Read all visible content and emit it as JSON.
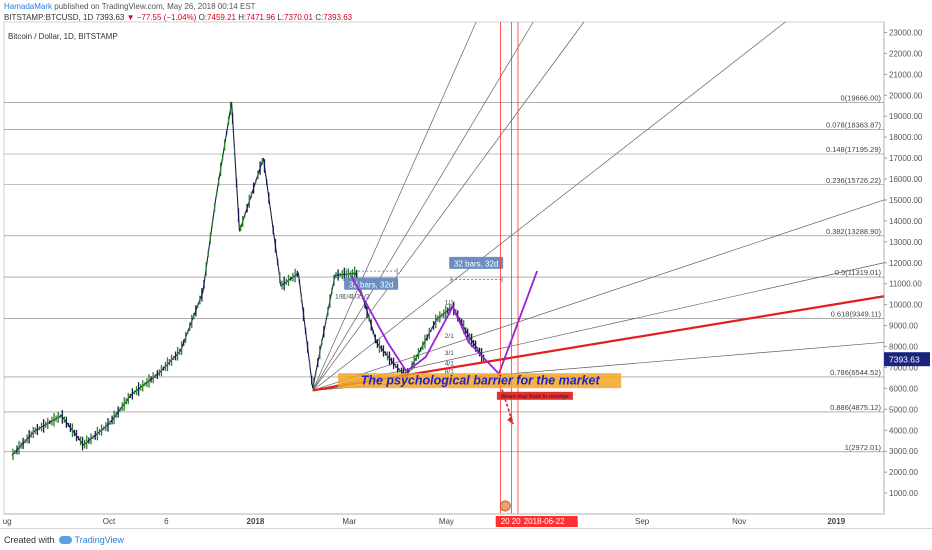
{
  "header": {
    "username": "HamadaMark",
    "published": "published on TradingView.com, May 26, 2018 00:14 EST",
    "symbol": "BITSTAMP:BTCUSD, 1D",
    "last": "7393.63",
    "change": "−77.55 (−1.04%)",
    "o_label": "O:",
    "o": "7459.21",
    "h_label": "H:",
    "h": "7471.96",
    "l_label": "L:",
    "l": "7370.01",
    "c_label": "C:",
    "c": "7393.63"
  },
  "footer": {
    "created_with": "Created with",
    "brand": "TradingView"
  },
  "chart_data": {
    "type": "line",
    "title": "Bitcoin / Dollar, 1D, BITSTAMP",
    "ylim": [
      0,
      23500
    ],
    "y_ticks": [
      "1000.00",
      "2000.00",
      "3000.00",
      "4000.00",
      "5000.00",
      "6000.00",
      "7000.00",
      "8000.00",
      "9000.00",
      "10000.00",
      "11000.00",
      "12000.00",
      "13000.00",
      "14000.00",
      "15000.00",
      "16000.00",
      "17000.00",
      "18000.00",
      "19000.00",
      "20000.00",
      "21000.00",
      "22000.00",
      "23000.00"
    ],
    "x_ticks": [
      "ug",
      "Oct",
      "6",
      "2018",
      "Mar",
      "May",
      "Sep",
      "Nov",
      "2019"
    ],
    "x_ticks_bold": [
      "2018",
      "2019"
    ],
    "last_price_label": "7393.63",
    "last_price": 7393.63,
    "price": [
      [
        "2017-08-01",
        2800
      ],
      [
        "2017-08-15",
        3950
      ],
      [
        "2017-09-01",
        4700
      ],
      [
        "2017-09-15",
        3300
      ],
      [
        "2017-10-01",
        4300
      ],
      [
        "2017-10-15",
        5700
      ],
      [
        "2017-11-01",
        6700
      ],
      [
        "2017-11-15",
        7800
      ],
      [
        "2017-11-29",
        10600
      ],
      [
        "2017-12-07",
        15000
      ],
      [
        "2017-12-17",
        19666
      ],
      [
        "2017-12-22",
        13500
      ],
      [
        "2018-01-06",
        17000
      ],
      [
        "2018-01-17",
        10900
      ],
      [
        "2018-01-28",
        11500
      ],
      [
        "2018-02-06",
        6000
      ],
      [
        "2018-02-20",
        11400
      ],
      [
        "2018-03-05",
        11500
      ],
      [
        "2018-03-18",
        8200
      ],
      [
        "2018-04-01",
        6900
      ],
      [
        "2018-04-06",
        6600
      ],
      [
        "2018-04-25",
        9300
      ],
      [
        "2018-05-05",
        9900
      ],
      [
        "2018-05-15",
        8500
      ],
      [
        "2018-05-25",
        7393.63
      ]
    ],
    "fib_levels": [
      {
        "ratio": "0",
        "value": 19666.0,
        "label": "0(19666.00)"
      },
      {
        "ratio": "0.078",
        "value": 18363.87,
        "label": "0.078(18363.87)"
      },
      {
        "ratio": "0.148",
        "value": 17195.29,
        "label": "0.148(17195.29)"
      },
      {
        "ratio": "0.236",
        "value": 15726.22,
        "label": "0.236(15726.22)"
      },
      {
        "ratio": "0.382",
        "value": 13288.9,
        "label": "0.382(13288.90)"
      },
      {
        "ratio": "0.5",
        "value": 11319.01,
        "label": "0.5(11319.01)"
      },
      {
        "ratio": "0.618",
        "value": 9349.11,
        "label": "0.618(9349.11)"
      },
      {
        "ratio": "0.786",
        "value": 6544.52,
        "label": "0.786(6544.52)"
      },
      {
        "ratio": "0.886",
        "value": 4875.12,
        "label": "0.886(4875.12)"
      },
      {
        "ratio": "1",
        "value": 2972.01,
        "label": "1(2972.01)"
      }
    ],
    "gann_fan": {
      "origin": [
        "2018-02-06",
        5900
      ],
      "rays": [
        [
          "2018-06-15",
          28000
        ],
        [
          "2018-07-30",
          28000
        ],
        [
          "2018-09-08",
          28000
        ],
        [
          "2018-11-30",
          23500
        ],
        [
          "2019-01-31",
          15000
        ],
        [
          "2019-01-31",
          12000
        ],
        [
          "2019-01-31",
          8200
        ]
      ],
      "ratio_labels": [
        {
          "text": "1/8",
          "date": "2018-02-20",
          "value": 10300
        },
        {
          "text": "1/4",
          "date": "2018-02-25",
          "value": 10300
        },
        {
          "text": "1/3",
          "date": "2018-03-02",
          "value": 10300
        },
        {
          "text": "1/2",
          "date": "2018-03-08",
          "value": 10300
        },
        {
          "text": "1/1",
          "date": "2018-04-30",
          "value": 10000
        },
        {
          "text": "2/1",
          "date": "2018-04-30",
          "value": 8400
        },
        {
          "text": "3/1",
          "date": "2018-04-30",
          "value": 7600
        },
        {
          "text": "4/1",
          "date": "2018-04-30",
          "value": 7100
        },
        {
          "text": "8/1",
          "date": "2018-04-30",
          "value": 6700
        }
      ]
    },
    "trendline": [
      [
        "2018-02-06",
        5900
      ],
      [
        "2019-01-31",
        10400
      ]
    ],
    "purple_path": [
      [
        "2018-03-02",
        11400
      ],
      [
        "2018-03-25",
        8200
      ],
      [
        "2018-04-06",
        6800
      ],
      [
        "2018-04-18",
        7500
      ],
      [
        "2018-05-05",
        9900
      ],
      [
        "2018-05-15",
        8200
      ],
      [
        "2018-06-03",
        6700
      ],
      [
        "2018-06-27",
        11600
      ]
    ],
    "red_projection": [
      [
        "2018-06-03",
        6400
      ],
      [
        "2018-06-12",
        4300
      ]
    ],
    "bars_ranges": [
      {
        "label": "32 bars, 32d",
        "start": "2018-02-27",
        "end": "2018-03-31",
        "value": 11600,
        "label_value": 10900
      },
      {
        "label": "32 bars, 32d",
        "start": "2018-05-04",
        "end": "2018-06-05",
        "value": 11200,
        "label_value": 11900
      }
    ],
    "vlines": [
      "2018-06-04",
      "2018-06-11",
      "2018-06-15"
    ],
    "barrier_label": "The psychological barrier for the market",
    "small_note": "Bears may Back to revenge",
    "date_labels": [
      "20",
      "20",
      "2018-06-22"
    ],
    "colors": {
      "candles_up": "#2d7d2d",
      "candles_down": "#1a1a4e",
      "fib": "#808080",
      "fan": "#606060",
      "trendline": "#e31e1e",
      "purple": "#9a22d8",
      "vline": "#ff3030",
      "barrier_bg": "#f5a623",
      "barrier_text": "#2222cc",
      "last_price_bg": "#1a237e",
      "range_box": "#6a8fc0"
    }
  }
}
